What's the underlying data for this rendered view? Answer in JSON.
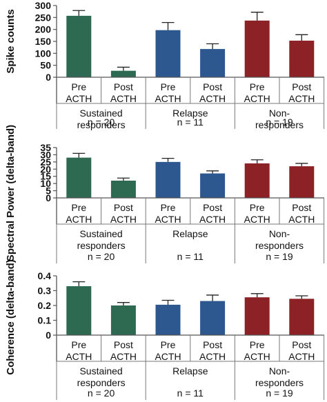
{
  "colors": {
    "sustained": "#2e6a52",
    "relapse": "#2c578f",
    "nonresponders": "#8c2126",
    "error": "#222222"
  },
  "groups": [
    {
      "key": "sustained",
      "lines": [
        "Sustained",
        "responders"
      ],
      "n": "n = 20"
    },
    {
      "key": "relapse",
      "lines": [
        "Relapse"
      ],
      "n": "n = 11"
    },
    {
      "key": "nonresponders",
      "lines": [
        "Non-",
        "responders"
      ],
      "n": "n = 19"
    }
  ],
  "conditions": [
    [
      "Pre",
      "ACTH"
    ],
    [
      "Post",
      "ACTH"
    ]
  ],
  "chart_data": [
    {
      "type": "bar",
      "ylabel": "Spike counts",
      "ylim": [
        0,
        300
      ],
      "yticks": [
        "0",
        "50",
        "100",
        "150",
        "200",
        "250",
        "300"
      ],
      "categories": [
        "Sustained responders Pre ACTH",
        "Sustained responders Post ACTH",
        "Relapse Pre ACTH",
        "Relapse Post ACTH",
        "Non-responders Pre ACTH",
        "Non-responders Post ACTH"
      ],
      "values": [
        257,
        27,
        197,
        118,
        237,
        153
      ],
      "errors": [
        22,
        15,
        32,
        22,
        35,
        25
      ],
      "grid": false
    },
    {
      "type": "bar",
      "ylabel": "Spectral Power (delta-band)",
      "ylim": [
        0,
        35
      ],
      "yticks": [
        "0",
        "5",
        "10",
        "15",
        "20",
        "25",
        "30",
        "35"
      ],
      "categories": [
        "Sustained responders Pre ACTH",
        "Sustained responders Post ACTH",
        "Relapse Pre ACTH",
        "Relapse Post ACTH",
        "Non-responders Pre ACTH",
        "Non-responders Post ACTH"
      ],
      "values": [
        28,
        12,
        25,
        17,
        24,
        22
      ],
      "errors": [
        3,
        1.8,
        2.5,
        1.8,
        2.5,
        2
      ],
      "grid": false
    },
    {
      "type": "bar",
      "ylabel": "Coherence (delta-band)",
      "ylim": [
        0,
        0.4
      ],
      "yticks": [
        "0",
        "0.1",
        "0.2",
        "0.3",
        "0.4"
      ],
      "categories": [
        "Sustained responders Pre ACTH",
        "Sustained responders Post ACTH",
        "Relapse Pre ACTH",
        "Relapse Post ACTH",
        "Non-responders Pre ACTH",
        "Non-responders Post ACTH"
      ],
      "values": [
        0.33,
        0.2,
        0.205,
        0.23,
        0.255,
        0.245
      ],
      "errors": [
        0.03,
        0.02,
        0.03,
        0.04,
        0.025,
        0.02
      ],
      "grid": false
    }
  ]
}
